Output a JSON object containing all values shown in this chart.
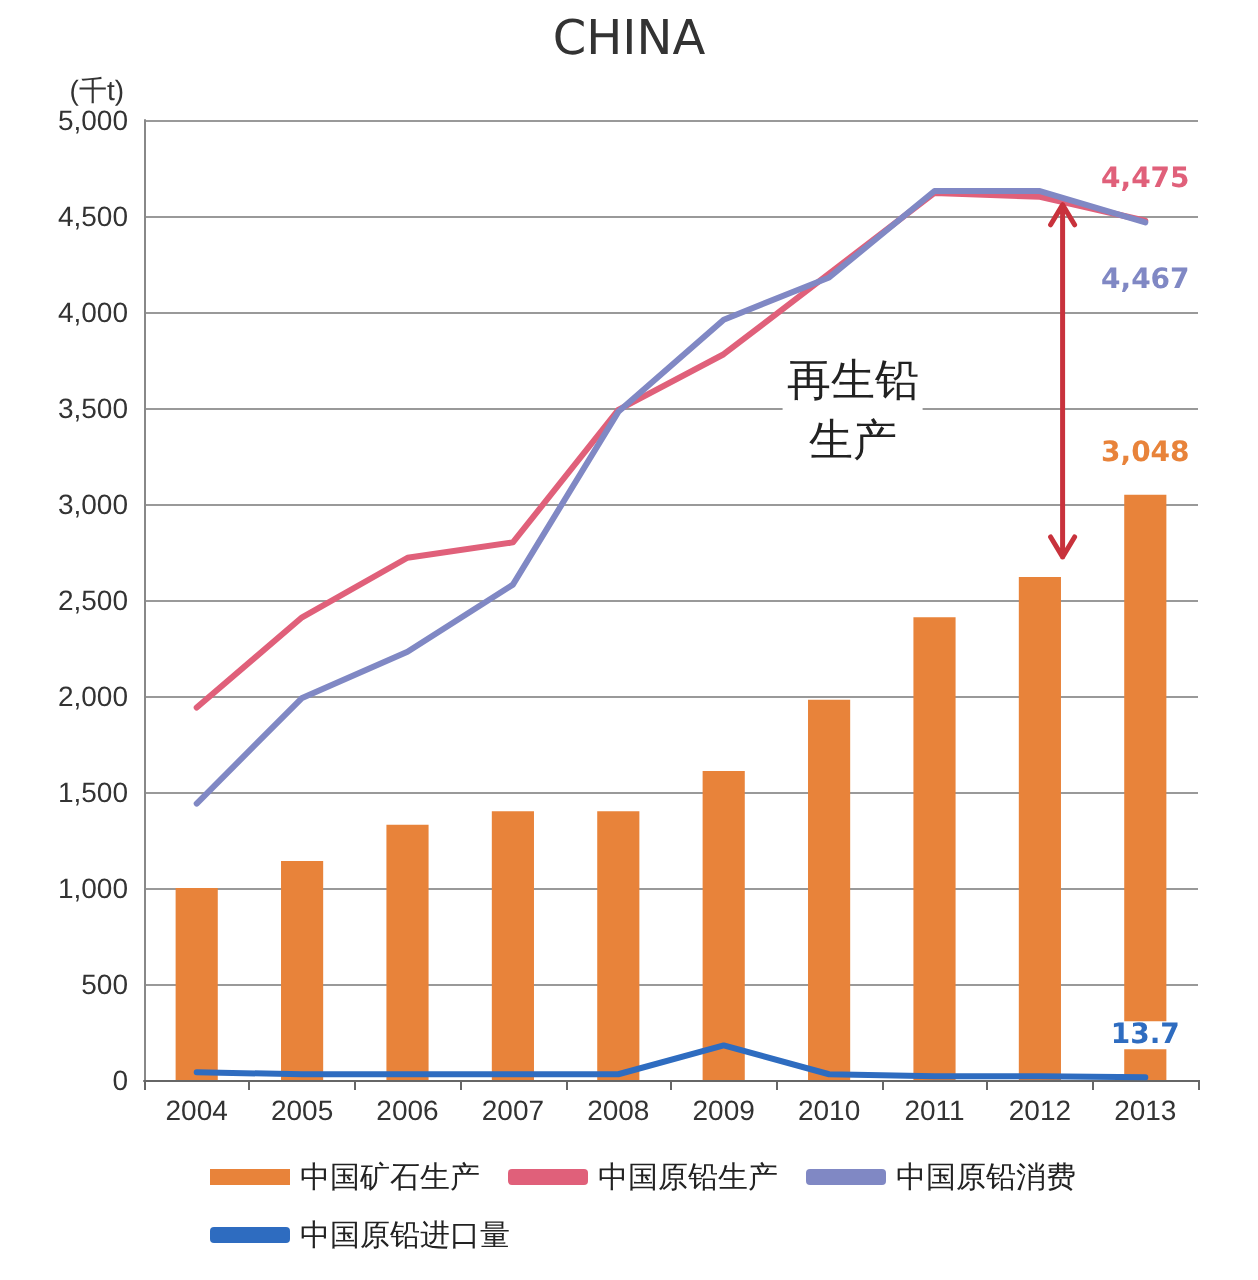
{
  "chart_data": {
    "type": "bar",
    "title": "CHINA",
    "ylabel": "(千t)",
    "categories": [
      "2004",
      "2005",
      "2006",
      "2007",
      "2008",
      "2009",
      "2010",
      "2011",
      "2012",
      "2013"
    ],
    "series": [
      {
        "name": "中国矿石生产",
        "color": "#e8833a",
        "values": [
          1000,
          1140,
          1330,
          1400,
          1400,
          1610,
          1980,
          2410,
          2620,
          3048
        ],
        "value_labels": [
          null,
          null,
          null,
          null,
          null,
          null,
          null,
          null,
          null,
          "3,048"
        ]
      },
      {
        "name": "中国原铅生产",
        "type": "line",
        "color": "#e0607a",
        "values": [
          1940,
          2410,
          2720,
          2800,
          3490,
          3780,
          4200,
          4620,
          4600,
          4475
        ],
        "value_labels": [
          null,
          null,
          null,
          null,
          null,
          null,
          null,
          null,
          null,
          "4,475"
        ]
      },
      {
        "name": "中国原铅消费",
        "type": "line",
        "color": "#8088c4",
        "values": [
          1440,
          1990,
          2230,
          2580,
          3480,
          3960,
          4180,
          4630,
          4630,
          4467
        ],
        "value_labels": [
          null,
          null,
          null,
          null,
          null,
          null,
          null,
          null,
          null,
          "4,467"
        ]
      },
      {
        "name": "中国原铅进口量",
        "type": "line",
        "color": "#2e6cc0",
        "values": [
          40,
          30,
          30,
          30,
          30,
          180,
          30,
          20,
          20,
          13.7
        ],
        "value_labels": [
          null,
          null,
          null,
          null,
          null,
          null,
          null,
          null,
          null,
          "13.7"
        ]
      }
    ],
    "ylim": [
      0,
      5000
    ],
    "yticks": [
      0,
      500,
      {
        "value": 1000,
        "label": "1,000"
      },
      {
        "value": 1500,
        "label": "1,500"
      },
      {
        "value": 2000,
        "label": "2,000"
      },
      {
        "value": 2500,
        "label": "2,500"
      },
      {
        "value": 3000,
        "label": "3,000"
      },
      {
        "value": 3500,
        "label": "3,500"
      },
      {
        "value": 4000,
        "label": "4,000"
      },
      {
        "value": 4500,
        "label": "4,500"
      },
      {
        "value": 5000,
        "label": "5,000"
      }
    ],
    "annotations": [
      "再生铅生产"
    ],
    "grid": "y",
    "legend": "bottom",
    "marker": "none"
  }
}
